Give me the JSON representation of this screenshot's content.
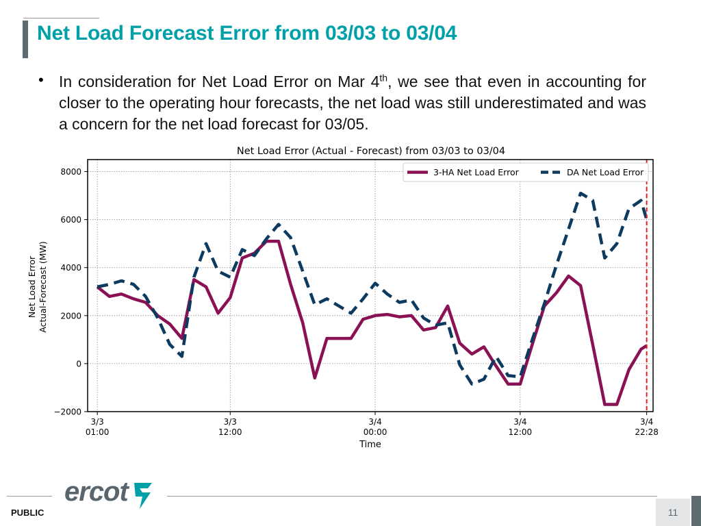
{
  "slide": {
    "title": "Net Load Forecast Error from 03/03 to 03/04",
    "bullet_char": "•",
    "bullet_text_1": "In consideration for Net Load Error on Mar 4",
    "bullet_sup": "th",
    "bullet_text_2": ", we see that even in accounting for closer to the operating hour forecasts, the net load was still underestimated and was a concern for the net load forecast for 03/05.",
    "footer_label": "PUBLIC",
    "logo_text": "ercot",
    "page_number": "11",
    "colors": {
      "title": "#00a0a8",
      "accent_bar": "#5f6b73"
    }
  },
  "chart_data": {
    "type": "line",
    "title": "Net Load Error (Actual - Forecast) from 03/03 to 03/04",
    "xlabel": "Time",
    "ylabel_line1": "Net Load Error",
    "ylabel_line2": "Actual-Forecast (MW)",
    "ylim": [
      -2000,
      8500
    ],
    "yticks": [
      -2000,
      0,
      2000,
      4000,
      6000,
      8000
    ],
    "ytick_labels": [
      "−2000",
      "0",
      "2000",
      "4000",
      "6000",
      "8000"
    ],
    "x_unit": "hours since 3/3 00:00",
    "xlim": [
      0.2,
      47.0
    ],
    "xticks": [
      {
        "x": 1,
        "line1": "3/3",
        "line2": "01:00"
      },
      {
        "x": 12,
        "line1": "3/3",
        "line2": "12:00"
      },
      {
        "x": 24,
        "line1": "3/4",
        "line2": "00:00"
      },
      {
        "x": 36,
        "line1": "3/4",
        "line2": "12:00"
      },
      {
        "x": 46.47,
        "line1": "3/4",
        "line2": "22:28"
      }
    ],
    "grid": true,
    "legend_position": "top-right",
    "vline": {
      "x": 46.47,
      "color": "#e02020",
      "style": "dashed"
    },
    "x": [
      1,
      2,
      3,
      4,
      5,
      6,
      7,
      8,
      9,
      10,
      11,
      12,
      13,
      14,
      15,
      16,
      17,
      18,
      19,
      20,
      21,
      22,
      23,
      24,
      25,
      26,
      27,
      28,
      29,
      30,
      31,
      32,
      33,
      34,
      35,
      36,
      37,
      38,
      39,
      40,
      41,
      42,
      43,
      44,
      45,
      46,
      46.47
    ],
    "series": [
      {
        "name": "3-HA Net Load Error",
        "color": "#8a1254",
        "dash": "solid",
        "values": [
          3200,
          2800,
          2900,
          2700,
          2550,
          2000,
          1650,
          1050,
          3500,
          3200,
          2100,
          2750,
          4400,
          4600,
          5100,
          5100,
          3300,
          1700,
          -600,
          1050,
          1050,
          1050,
          1850,
          2000,
          2050,
          1950,
          2000,
          1400,
          1500,
          2400,
          850,
          400,
          700,
          -100,
          -850,
          -850,
          800,
          2400,
          2950,
          3650,
          3250,
          800,
          -1700,
          -1700,
          -250,
          600,
          750
        ]
      },
      {
        "name": "DA Net Load Error",
        "color": "#0d3a5f",
        "dash": "dashed",
        "values": [
          3200,
          3300,
          3450,
          3300,
          2800,
          1900,
          800,
          300,
          3600,
          5000,
          3850,
          3600,
          4750,
          4500,
          5200,
          5800,
          5250,
          3850,
          2450,
          2700,
          2400,
          2100,
          2700,
          3350,
          2900,
          2550,
          2650,
          1900,
          1600,
          1700,
          -50,
          -850,
          -650,
          300,
          -500,
          -550,
          1000,
          2500,
          4100,
          5600,
          7100,
          6800,
          4400,
          5000,
          6450,
          6800,
          6000
        ]
      }
    ]
  }
}
